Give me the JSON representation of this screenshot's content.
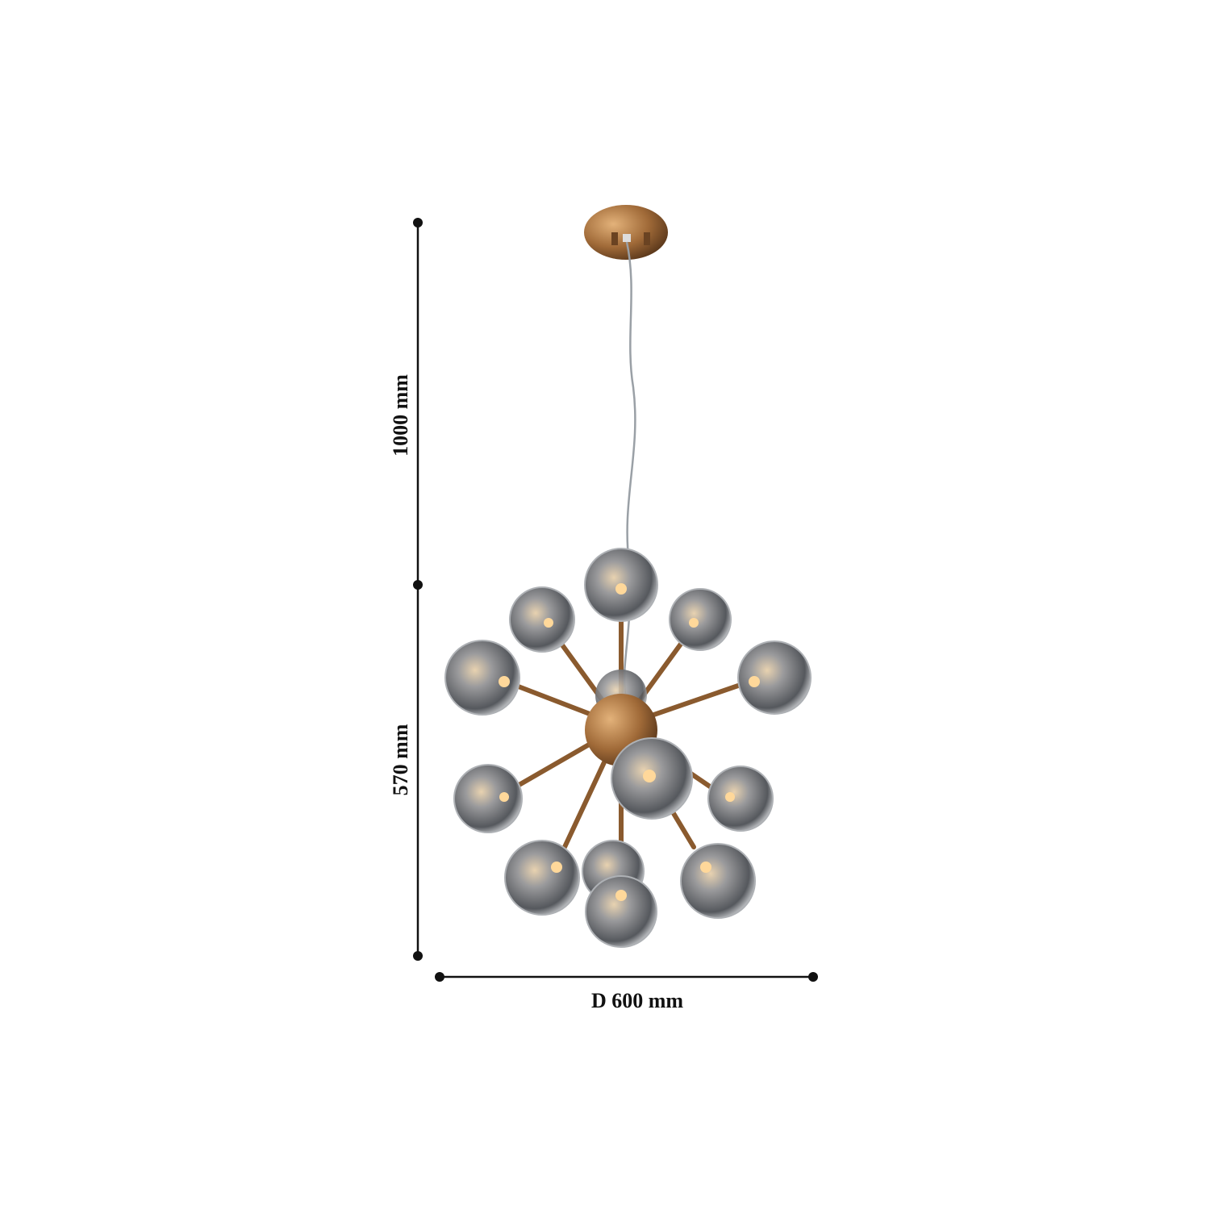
{
  "dimensions": {
    "cord_length": "1000 mm",
    "body_height": "570 mm",
    "diameter": "D 600 mm"
  },
  "colors": {
    "line": "#111111",
    "brass": "#b07a45",
    "glass": "#8c8f94"
  }
}
